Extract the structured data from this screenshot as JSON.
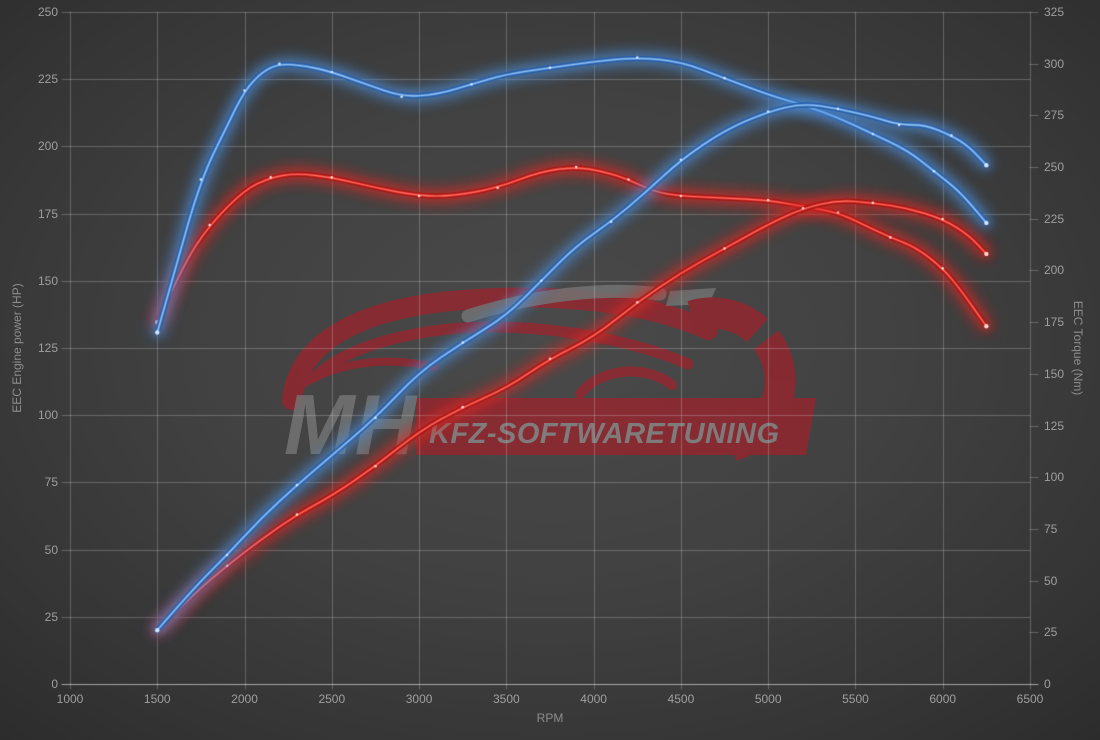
{
  "chart_data": {
    "type": "line",
    "title": "",
    "xlabel": "RPM",
    "ylabel_left": "EEC Engine power (HP)",
    "ylabel_right": "EEC Torque (Nm)",
    "x_range": [
      1000,
      6500
    ],
    "x_ticks": [
      1000,
      1500,
      2000,
      2500,
      3000,
      3500,
      4000,
      4500,
      5000,
      5500,
      6000,
      6500
    ],
    "y_left_range": [
      0,
      250
    ],
    "y_left_ticks": [
      0,
      25,
      50,
      75,
      100,
      125,
      150,
      175,
      200,
      225,
      250
    ],
    "y_right_range": [
      0,
      325
    ],
    "y_right_ticks": [
      0,
      25,
      50,
      75,
      100,
      125,
      150,
      175,
      200,
      225,
      250,
      275,
      300,
      325
    ],
    "grid": true,
    "legend": false,
    "series": [
      {
        "name": "red-torque-nm",
        "axis": "right",
        "color": "#de2b26",
        "glow": "#8f1412",
        "highlight": "#ff7a6e",
        "marker": "#ffd9d2",
        "points": [
          [
            1500,
            175
          ],
          [
            1650,
            203
          ],
          [
            1800,
            222
          ],
          [
            2000,
            239
          ],
          [
            2150,
            245
          ],
          [
            2300,
            247
          ],
          [
            2500,
            245
          ],
          [
            2750,
            240
          ],
          [
            3000,
            236
          ],
          [
            3200,
            236
          ],
          [
            3450,
            240
          ],
          [
            3700,
            248
          ],
          [
            3900,
            250
          ],
          [
            4050,
            248
          ],
          [
            4200,
            244
          ],
          [
            4350,
            238
          ],
          [
            4500,
            236
          ],
          [
            4750,
            235
          ],
          [
            5000,
            234
          ],
          [
            5200,
            231
          ],
          [
            5400,
            228
          ],
          [
            5550,
            222
          ],
          [
            5700,
            216
          ],
          [
            5850,
            211
          ],
          [
            6000,
            201
          ],
          [
            6100,
            191
          ],
          [
            6250,
            173
          ]
        ]
      },
      {
        "name": "red-power-hp",
        "axis": "left",
        "color": "#de2b26",
        "glow": "#8f1412",
        "highlight": "#ff7a6e",
        "marker": "#ffd9d2",
        "points": [
          [
            1500,
            20
          ],
          [
            1700,
            33
          ],
          [
            1900,
            44
          ],
          [
            2100,
            54
          ],
          [
            2300,
            63
          ],
          [
            2500,
            70
          ],
          [
            2750,
            81
          ],
          [
            3000,
            94
          ],
          [
            3250,
            103
          ],
          [
            3500,
            110
          ],
          [
            3750,
            121
          ],
          [
            4000,
            129
          ],
          [
            4250,
            142
          ],
          [
            4500,
            153
          ],
          [
            4750,
            162
          ],
          [
            5000,
            171
          ],
          [
            5200,
            177
          ],
          [
            5400,
            180
          ],
          [
            5600,
            179
          ],
          [
            5800,
            177
          ],
          [
            6000,
            173
          ],
          [
            6150,
            167
          ],
          [
            6250,
            160
          ]
        ]
      },
      {
        "name": "blue-torque-nm",
        "axis": "right",
        "color": "#4f8fd9",
        "glow": "#1d4f96",
        "highlight": "#a6cbf5",
        "marker": "#d3e6ff",
        "points": [
          [
            1500,
            170
          ],
          [
            1600,
            200
          ],
          [
            1750,
            244
          ],
          [
            1900,
            270
          ],
          [
            2000,
            287
          ],
          [
            2100,
            296
          ],
          [
            2200,
            300
          ],
          [
            2350,
            299
          ],
          [
            2500,
            296
          ],
          [
            2700,
            290
          ],
          [
            2900,
            284
          ],
          [
            3100,
            285
          ],
          [
            3300,
            290
          ],
          [
            3500,
            295
          ],
          [
            3750,
            298
          ],
          [
            4000,
            301
          ],
          [
            4250,
            303
          ],
          [
            4500,
            301
          ],
          [
            4750,
            293
          ],
          [
            5000,
            285
          ],
          [
            5200,
            280
          ],
          [
            5400,
            274
          ],
          [
            5600,
            266
          ],
          [
            5800,
            258
          ],
          [
            5950,
            248
          ],
          [
            6100,
            238
          ],
          [
            6250,
            223
          ]
        ]
      },
      {
        "name": "blue-power-hp",
        "axis": "left",
        "color": "#4f8fd9",
        "glow": "#1d4f96",
        "highlight": "#a6cbf5",
        "marker": "#d3e6ff",
        "points": [
          [
            1500,
            20
          ],
          [
            1700,
            35
          ],
          [
            1900,
            48
          ],
          [
            2100,
            62
          ],
          [
            2300,
            74
          ],
          [
            2500,
            85
          ],
          [
            2750,
            99
          ],
          [
            3000,
            116
          ],
          [
            3250,
            127
          ],
          [
            3500,
            137
          ],
          [
            3700,
            150
          ],
          [
            3900,
            163
          ],
          [
            4100,
            172
          ],
          [
            4300,
            183
          ],
          [
            4500,
            195
          ],
          [
            4750,
            206
          ],
          [
            5000,
            213
          ],
          [
            5200,
            216
          ],
          [
            5400,
            214
          ],
          [
            5600,
            211
          ],
          [
            5750,
            208
          ],
          [
            5900,
            208
          ],
          [
            6050,
            204
          ],
          [
            6150,
            200
          ],
          [
            6250,
            193
          ]
        ]
      }
    ]
  },
  "watermark": {
    "letters": "MH",
    "banner_text": "KFZ-SOFTWARETUNING",
    "red": "#c41421",
    "gray": "#a3a3a3"
  },
  "colors": {
    "grid": "rgba(210,210,210,0.30)",
    "axis_line": "rgba(220,220,220,0.55)",
    "tick_text": "#9f9f9f",
    "axis_title_text": "#8d8d8d"
  }
}
